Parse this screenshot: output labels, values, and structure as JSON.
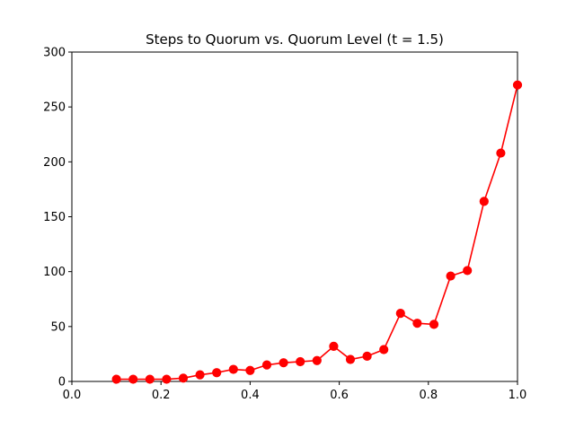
{
  "chart_data": {
    "type": "line",
    "title": "Steps to Quorum vs. Quorum Level (t = 1.5)",
    "xlabel": "",
    "ylabel": "",
    "xlim": [
      0.0,
      1.0
    ],
    "ylim": [
      0,
      300
    ],
    "xticks": [
      "0.0",
      "0.2",
      "0.4",
      "0.6",
      "0.8",
      "1.0"
    ],
    "yticks": [
      "0",
      "50",
      "100",
      "150",
      "200",
      "250",
      "300"
    ],
    "grid": false,
    "series": [
      {
        "color": "#ff0000",
        "marker": "circle",
        "x": [
          0.1,
          0.1375,
          0.175,
          0.2125,
          0.25,
          0.2875,
          0.325,
          0.3625,
          0.4,
          0.4375,
          0.475,
          0.5125,
          0.55,
          0.5875,
          0.625,
          0.6625,
          0.7,
          0.7375,
          0.775,
          0.8125,
          0.85,
          0.8875,
          0.925,
          0.9625,
          1.0
        ],
        "y": [
          2,
          2,
          2,
          2,
          3,
          6,
          8,
          11,
          10,
          15,
          17,
          18,
          19,
          32,
          20,
          23,
          29,
          62,
          53,
          52,
          96,
          101,
          164,
          208,
          270
        ]
      }
    ]
  }
}
